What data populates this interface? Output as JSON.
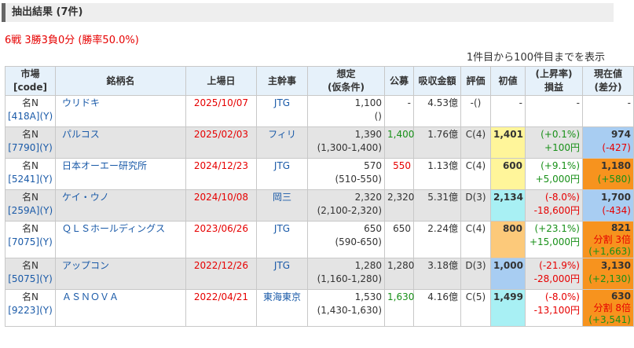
{
  "header": {
    "title": "抽出結果 (7件)"
  },
  "record": "6戦 3勝3負0分 (勝率50.0%)",
  "count": "1件目から100件目までを表示",
  "columns": {
    "market": "市場",
    "market2": "[code]",
    "name": "銘柄名",
    "date": "上場日",
    "lead": "主幹事",
    "assumed": "想定",
    "assumed2": "(仮条件)",
    "offer": "公募",
    "raised": "吸収金額",
    "rating": "評価",
    "initial": "初値",
    "rise": "(上昇率)",
    "rise2": "損益",
    "current": "現在値",
    "current2": "(差分)"
  },
  "rows": [
    {
      "market": "名N",
      "code": "[418A](Y)",
      "name": "ウリドキ",
      "date": "2025/10/07",
      "lead": "JTG",
      "assumed": "1,100",
      "range": "()",
      "offer": "-",
      "raised": "4.53億",
      "rating": "-()",
      "initial": "-",
      "rise": "-",
      "pl": "",
      "current": "-",
      "note": "",
      "diff": ""
    },
    {
      "market": "名N",
      "code": "[7790](Y)",
      "name": "パルコス",
      "date": "2025/02/03",
      "lead": "フィリ",
      "assumed": "1,390",
      "range": "(1,300-1,400)",
      "offer": "1,400",
      "raised": "1.76億",
      "rating": "C(4)",
      "initial": "1,401",
      "rise": "(+0.1%)",
      "pl": "+100円",
      "current": "974",
      "note": "",
      "diff": "(-427)"
    },
    {
      "market": "名N",
      "code": "[5241](Y)",
      "name": "日本オーエー研究所",
      "date": "2024/12/23",
      "lead": "JTG",
      "assumed": "570",
      "range": "(510-550)",
      "offer": "550",
      "raised": "1.13億",
      "rating": "C(4)",
      "initial": "600",
      "rise": "(+9.1%)",
      "pl": "+5,000円",
      "current": "1,180",
      "note": "",
      "diff": "(+580)"
    },
    {
      "market": "名N",
      "code": "[259A](Y)",
      "name": "ケイ・ウノ",
      "date": "2024/10/08",
      "lead": "岡三",
      "assumed": "2,320",
      "range": "(2,100-2,320)",
      "offer": "2,320",
      "raised": "5.31億",
      "rating": "D(3)",
      "initial": "2,134",
      "rise": "(-8.0%)",
      "pl": "-18,600円",
      "current": "1,700",
      "note": "",
      "diff": "(-434)"
    },
    {
      "market": "名N",
      "code": "[7075](Y)",
      "name": "ＱＬＳホールディングス",
      "date": "2023/06/26",
      "lead": "JTG",
      "assumed": "650",
      "range": "(590-650)",
      "offer": "650",
      "raised": "2.24億",
      "rating": "C(4)",
      "initial": "800",
      "rise": "(+23.1%)",
      "pl": "+15,000円",
      "current": "821",
      "note": "分割 3倍",
      "diff": "(+1,663)"
    },
    {
      "market": "名N",
      "code": "[5075](Y)",
      "name": "アップコン",
      "date": "2022/12/26",
      "lead": "JTG",
      "assumed": "1,280",
      "range": "(1,160-1,280)",
      "offer": "1,280",
      "raised": "3.18億",
      "rating": "D(3)",
      "initial": "1,000",
      "rise": "(-21.9%)",
      "pl": "-28,000円",
      "current": "3,130",
      "note": "",
      "diff": "(+2,130)"
    },
    {
      "market": "名N",
      "code": "[9223](Y)",
      "name": "ＡＳＮＯＶＡ",
      "date": "2022/04/21",
      "lead": "東海東京",
      "assumed": "1,530",
      "range": "(1,430-1,630)",
      "offer": "1,630",
      "raised": "4.16億",
      "rating": "C(5)",
      "initial": "1,499",
      "rise": "(-8.0%)",
      "pl": "-13,100円",
      "current": "630",
      "note": "分割 8倍",
      "diff": "(+3,541)"
    }
  ],
  "colors": {
    "red": "#e60000",
    "green": "#189018",
    "blue": "#1a5aa8",
    "yellow": "#fff59a",
    "orange_light": "#fcc97a",
    "blue_light": "#a8cdf2",
    "cyan": "#a8f0f4",
    "orange": "#f7931e"
  }
}
